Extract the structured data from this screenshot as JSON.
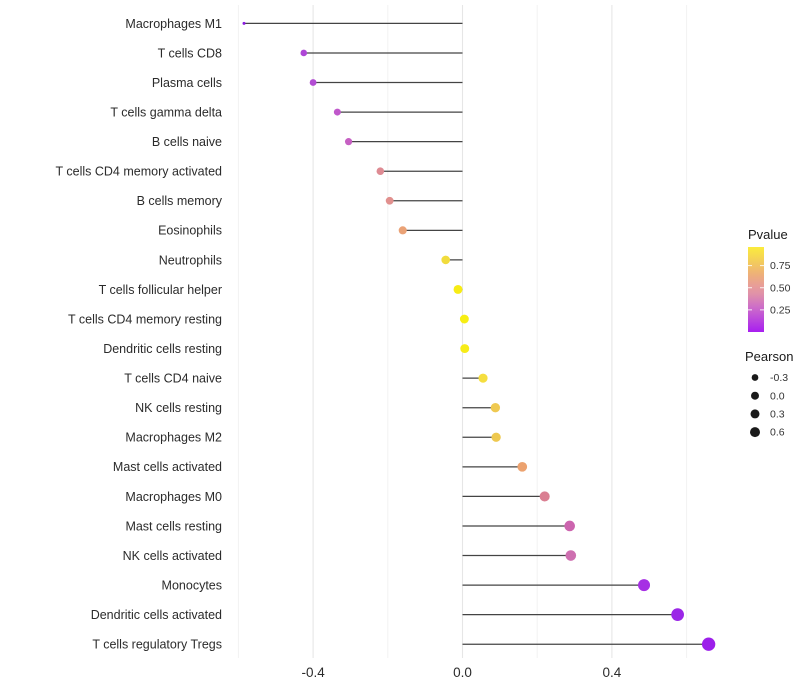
{
  "chart_data": {
    "type": "lollipop",
    "orientation": "horizontal",
    "title": "",
    "xlabel": "",
    "ylabel": "",
    "grid": true,
    "legend_position": "right",
    "xlim": [
      -0.617,
      0.743
    ],
    "x_ticks_major": [
      -0.4,
      0.0,
      0.4
    ],
    "x_tick_labels": [
      "-0.4",
      "0.0",
      "0.4"
    ],
    "x_ticks_minor": [
      -0.6,
      -0.2,
      0.2,
      0.6
    ],
    "baseline_value": 0.0,
    "points": [
      {
        "label": "Macrophages M1",
        "pearson": -0.585,
        "pvalue_est": 0.005,
        "color": "#8A1BDF",
        "size": 3.0
      },
      {
        "label": "T cells CD8",
        "pearson": -0.425,
        "pvalue_est": 0.05,
        "color": "#AE46D6",
        "size": 6.6
      },
      {
        "label": "Plasma cells",
        "pearson": -0.4,
        "pvalue_est": 0.07,
        "color": "#B24CD3",
        "size": 6.8
      },
      {
        "label": "T cells gamma delta",
        "pearson": -0.335,
        "pvalue_est": 0.12,
        "color": "#C058CB",
        "size": 7.0
      },
      {
        "label": "B cells naive",
        "pearson": -0.305,
        "pvalue_est": 0.15,
        "color": "#C660C3",
        "size": 7.2
      },
      {
        "label": "T cells CD4 memory activated",
        "pearson": -0.22,
        "pvalue_est": 0.32,
        "color": "#DE8B93",
        "size": 7.6
      },
      {
        "label": "B cells memory",
        "pearson": -0.195,
        "pvalue_est": 0.35,
        "color": "#E1908E",
        "size": 7.8
      },
      {
        "label": "Eosinophils",
        "pearson": -0.16,
        "pvalue_est": 0.5,
        "color": "#EAA276",
        "size": 8.1
      },
      {
        "label": "Neutrophils",
        "pearson": -0.045,
        "pvalue_est": 0.82,
        "color": "#F1DC3D",
        "size": 8.6
      },
      {
        "label": "T cells follicular helper",
        "pearson": -0.012,
        "pvalue_est": 0.92,
        "color": "#F7EC15",
        "size": 8.9
      },
      {
        "label": "T cells CD4 memory resting",
        "pearson": 0.005,
        "pvalue_est": 0.95,
        "color": "#F7EE12",
        "size": 8.9
      },
      {
        "label": "Dendritic cells resting",
        "pearson": 0.006,
        "pvalue_est": 0.93,
        "color": "#F7EC18",
        "size": 8.9
      },
      {
        "label": "T cells CD4 naive",
        "pearson": 0.055,
        "pvalue_est": 0.86,
        "color": "#F5DE3F",
        "size": 9.1
      },
      {
        "label": "NK cells resting",
        "pearson": 0.088,
        "pvalue_est": 0.76,
        "color": "#EFC951",
        "size": 9.3
      },
      {
        "label": "Macrophages M2",
        "pearson": 0.09,
        "pvalue_est": 0.76,
        "color": "#EEC84F",
        "size": 9.3
      },
      {
        "label": "Mast cells activated",
        "pearson": 0.16,
        "pvalue_est": 0.55,
        "color": "#ECA26F",
        "size": 9.7
      },
      {
        "label": "Macrophages M0",
        "pearson": 0.22,
        "pvalue_est": 0.34,
        "color": "#DA7F92",
        "size": 10.1
      },
      {
        "label": "Mast cells resting",
        "pearson": 0.287,
        "pvalue_est": 0.21,
        "color": "#CC64AE",
        "size": 10.6
      },
      {
        "label": "NK cells activated",
        "pearson": 0.29,
        "pvalue_est": 0.22,
        "color": "#CE6FB0",
        "size": 10.6
      },
      {
        "label": "Monocytes",
        "pearson": 0.486,
        "pvalue_est": 0.05,
        "color": "#A62FE4",
        "size": 12.0
      },
      {
        "label": "Dendritic cells activated",
        "pearson": 0.576,
        "pvalue_est": 0.02,
        "color": "#9B27E7",
        "size": 12.7
      },
      {
        "label": "T cells regulatory  Tregs",
        "pearson": 0.659,
        "pvalue_est": 0.01,
        "color": "#9C1FEA",
        "size": 13.3
      }
    ],
    "legends": {
      "color": {
        "title": "Pvalue",
        "value_range": [
          0.0,
          0.96
        ],
        "tick_values": [
          0.75,
          0.5,
          0.25
        ],
        "tick_labels": [
          "0.75",
          "0.50",
          "0.25"
        ],
        "gradient_stops": [
          {
            "at": 0.0,
            "color": "#A81EF0"
          },
          {
            "at": 0.15,
            "color": "#BB48DC"
          },
          {
            "at": 0.3,
            "color": "#CE6FC7"
          },
          {
            "at": 0.45,
            "color": "#E092A8"
          },
          {
            "at": 0.55,
            "color": "#E89E97"
          },
          {
            "at": 0.68,
            "color": "#EEB079"
          },
          {
            "at": 0.82,
            "color": "#F3CB5D"
          },
          {
            "at": 1.0,
            "color": "#FBEC3C"
          }
        ]
      },
      "size": {
        "title": "Pearson",
        "items": [
          {
            "label": "-0.3",
            "diameter": 6.7
          },
          {
            "label": "0.0",
            "diameter": 8.0
          },
          {
            "label": "0.3",
            "diameter": 9.0
          },
          {
            "label": "0.6",
            "diameter": 10.0
          }
        ],
        "dot_color": "#1a1a1a"
      }
    },
    "style_colors": {
      "background": "#ffffff",
      "stem": "#444444",
      "grid_major": "#e6e6e6",
      "grid_minor": "#f2f2f2",
      "axis_text": "#2b2b2b",
      "legend_text": "#333333"
    }
  }
}
